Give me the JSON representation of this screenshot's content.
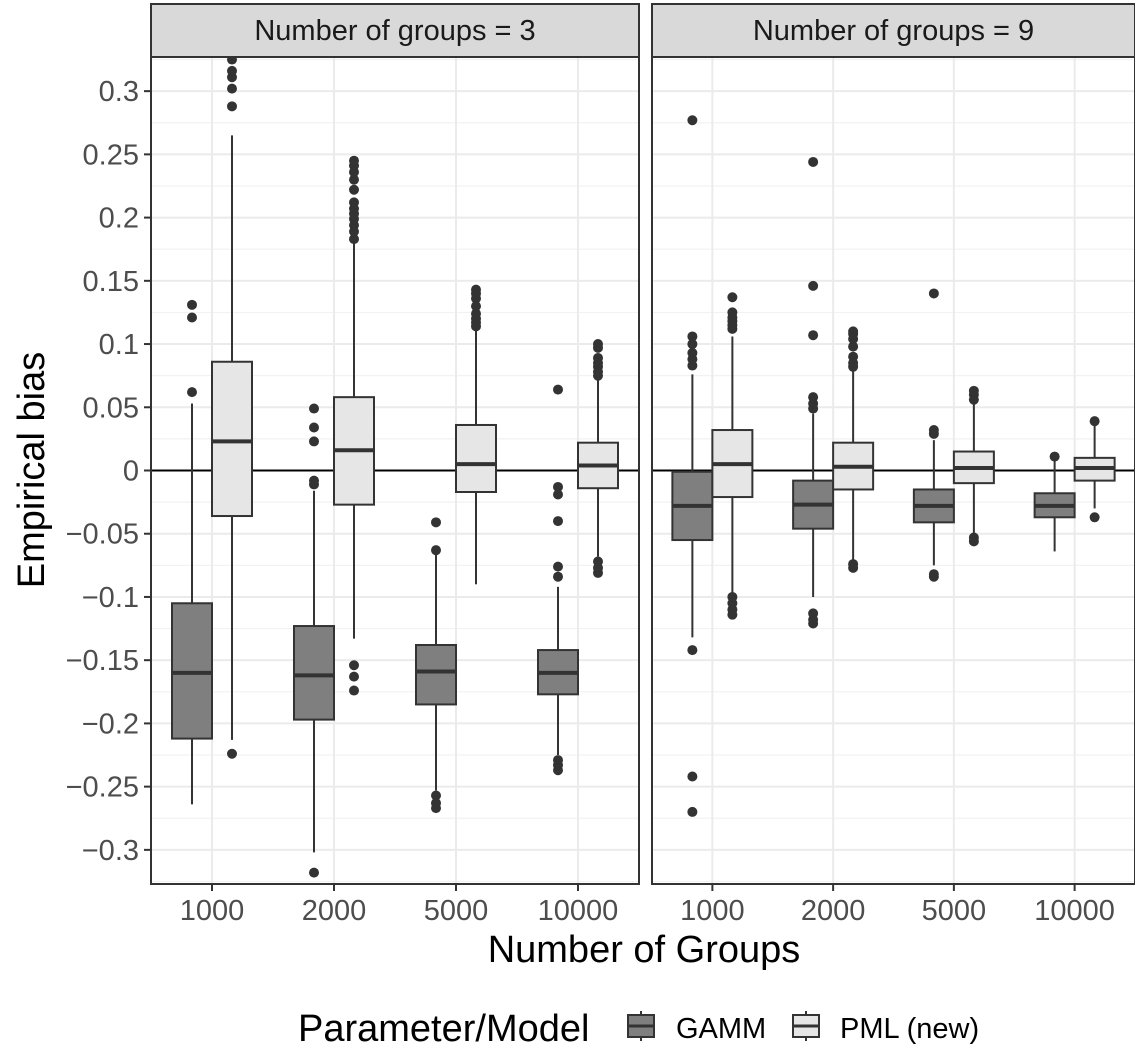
{
  "chart_data": {
    "type": "box",
    "ylabel": "Empirical bias",
    "xlabel": "Number of Groups",
    "ylim": [
      -0.327,
      0.327
    ],
    "y_ticks": [
      "0.3",
      "0.25",
      "0.2",
      "0.15",
      "0.1",
      "0.05",
      "0",
      "−0.05",
      "−0.1",
      "−0.15",
      "−0.2",
      "−0.25",
      "−0.3"
    ],
    "y_tick_values": [
      0.3,
      0.25,
      0.2,
      0.15,
      0.1,
      0.05,
      0,
      -0.05,
      -0.1,
      -0.15,
      -0.2,
      -0.25,
      -0.3
    ],
    "categories": [
      "1000",
      "2000",
      "5000",
      "10000"
    ],
    "grid": true,
    "reference_line_y": 0,
    "legend": {
      "title": "Parameter/Model",
      "position": "bottom",
      "entries": [
        {
          "name": "GAMM",
          "color": "#7f7f7f"
        },
        {
          "name": "PML (new)",
          "color": "#e6e6e6"
        }
      ]
    },
    "panels": [
      {
        "title": "Number of groups = 3",
        "series": [
          {
            "name": "GAMM",
            "boxes": [
              {
                "category": "1000",
                "q1": -0.212,
                "median": -0.16,
                "q3": -0.105,
                "whisker_low": -0.264,
                "whisker_high": 0.053,
                "outliers": [
                  0.062,
                  0.121,
                  0.131
                ]
              },
              {
                "category": "2000",
                "q1": -0.197,
                "median": -0.162,
                "q3": -0.123,
                "whisker_low": -0.302,
                "whisker_high": -0.016,
                "outliers": [
                  -0.318,
                  -0.011,
                  -0.008,
                  0.023,
                  0.034,
                  0.049
                ]
              },
              {
                "category": "5000",
                "q1": -0.185,
                "median": -0.159,
                "q3": -0.138,
                "whisker_low": -0.253,
                "whisker_high": -0.065,
                "outliers": [
                  -0.267,
                  -0.263,
                  -0.257,
                  -0.063,
                  -0.041
                ]
              },
              {
                "category": "10000",
                "q1": -0.177,
                "median": -0.16,
                "q3": -0.142,
                "whisker_low": -0.225,
                "whisker_high": -0.092,
                "outliers": [
                  -0.237,
                  -0.233,
                  -0.229,
                  -0.084,
                  -0.076,
                  -0.04,
                  -0.019,
                  -0.013,
                  0.064
                ]
              }
            ]
          },
          {
            "name": "PML (new)",
            "boxes": [
              {
                "category": "1000",
                "q1": -0.036,
                "median": 0.023,
                "q3": 0.086,
                "whisker_low": -0.213,
                "whisker_high": 0.265,
                "outliers": [
                  -0.224,
                  0.288,
                  0.302,
                  0.311,
                  0.316,
                  0.325
                ]
              },
              {
                "category": "2000",
                "q1": -0.027,
                "median": 0.016,
                "q3": 0.058,
                "whisker_low": -0.133,
                "whisker_high": 0.183,
                "outliers": [
                  -0.174,
                  -0.163,
                  -0.154,
                  0.183,
                  0.189,
                  0.194,
                  0.199,
                  0.203,
                  0.207,
                  0.212,
                  0.222,
                  0.23,
                  0.236,
                  0.241,
                  0.245
                ]
              },
              {
                "category": "5000",
                "q1": -0.017,
                "median": 0.005,
                "q3": 0.036,
                "whisker_low": -0.09,
                "whisker_high": 0.112,
                "outliers": [
                  0.114,
                  0.117,
                  0.12,
                  0.124,
                  0.13,
                  0.136,
                  0.14,
                  0.143
                ]
              },
              {
                "category": "10000",
                "q1": -0.014,
                "median": 0.004,
                "q3": 0.022,
                "whisker_low": -0.068,
                "whisker_high": 0.075,
                "outliers": [
                  -0.081,
                  -0.077,
                  -0.072,
                  0.075,
                  0.078,
                  0.082,
                  0.085,
                  0.089,
                  0.097,
                  0.1
                ]
              }
            ]
          }
        ]
      },
      {
        "title": "Number of groups = 9",
        "series": [
          {
            "name": "GAMM",
            "boxes": [
              {
                "category": "1000",
                "q1": -0.055,
                "median": -0.028,
                "q3": -0.001,
                "whisker_low": -0.132,
                "whisker_high": 0.076,
                "outliers": [
                  -0.27,
                  -0.242,
                  -0.142,
                  0.083,
                  0.088,
                  0.093,
                  0.1,
                  0.106,
                  0.277
                ]
              },
              {
                "category": "2000",
                "q1": -0.046,
                "median": -0.027,
                "q3": -0.008,
                "whisker_low": -0.1,
                "whisker_high": 0.045,
                "outliers": [
                  -0.121,
                  -0.118,
                  -0.113,
                  0.049,
                  0.053,
                  0.058,
                  0.107,
                  0.146,
                  0.244
                ]
              },
              {
                "category": "5000",
                "q1": -0.041,
                "median": -0.028,
                "q3": -0.015,
                "whisker_low": -0.075,
                "whisker_high": 0.024,
                "outliers": [
                  -0.084,
                  -0.082,
                  0.029,
                  0.032,
                  0.14
                ]
              },
              {
                "category": "10000",
                "q1": -0.037,
                "median": -0.028,
                "q3": -0.018,
                "whisker_low": -0.064,
                "whisker_high": 0.008,
                "outliers": [
                  0.011
                ]
              }
            ]
          },
          {
            "name": "PML (new)",
            "boxes": [
              {
                "category": "1000",
                "q1": -0.021,
                "median": 0.005,
                "q3": 0.032,
                "whisker_low": -0.097,
                "whisker_high": 0.106,
                "outliers": [
                  -0.114,
                  -0.11,
                  -0.105,
                  -0.1,
                  0.112,
                  0.115,
                  0.118,
                  0.121,
                  0.125,
                  0.137
                ]
              },
              {
                "category": "2000",
                "q1": -0.015,
                "median": 0.003,
                "q3": 0.022,
                "whisker_low": -0.072,
                "whisker_high": 0.08,
                "outliers": [
                  -0.077,
                  -0.074,
                  0.082,
                  0.085,
                  0.09,
                  0.098,
                  0.104,
                  0.108,
                  0.11
                ]
              },
              {
                "category": "5000",
                "q1": -0.01,
                "median": 0.002,
                "q3": 0.015,
                "whisker_low": -0.05,
                "whisker_high": 0.053,
                "outliers": [
                  -0.056,
                  -0.053,
                  0.056,
                  0.06,
                  0.063
                ]
              },
              {
                "category": "10000",
                "q1": -0.008,
                "median": 0.002,
                "q3": 0.01,
                "whisker_low": -0.03,
                "whisker_high": 0.038,
                "outliers": [
                  -0.037,
                  0.039
                ]
              }
            ]
          }
        ]
      }
    ]
  }
}
